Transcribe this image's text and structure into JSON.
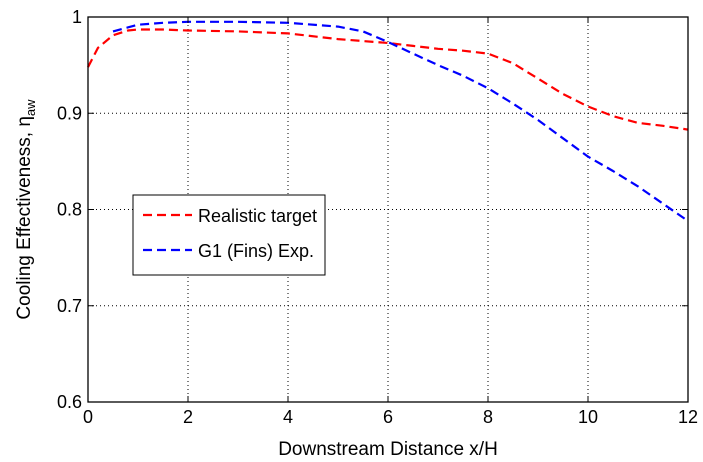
{
  "chart_data": {
    "type": "line",
    "title": "",
    "xlabel": "Downstream Distance x/H",
    "ylabel_main": "Cooling Effectiveness, η",
    "ylabel_sub": "aw",
    "xlim": [
      0,
      12
    ],
    "ylim": [
      0.6,
      1
    ],
    "xticks": [
      0,
      2,
      4,
      6,
      8,
      10,
      12
    ],
    "yticks": [
      0.6,
      0.7,
      0.8,
      0.9,
      1
    ],
    "xtick_labels": [
      "0",
      "2",
      "4",
      "6",
      "8",
      "10",
      "12"
    ],
    "ytick_labels": [
      "0.6",
      "0.7",
      "0.8",
      "0.9",
      "1"
    ],
    "grid": true,
    "legend_position": "left",
    "series": [
      {
        "name": "Realistic target",
        "color": "#ff0000",
        "style": "dashed",
        "x": [
          0,
          0.2,
          0.5,
          0.8,
          1,
          1.5,
          2,
          3,
          4,
          5,
          6,
          6.5,
          7,
          7.5,
          8,
          8.5,
          9,
          9.5,
          10,
          10.5,
          11,
          11.5,
          12
        ],
        "y": [
          0.948,
          0.968,
          0.981,
          0.986,
          0.987,
          0.987,
          0.986,
          0.985,
          0.983,
          0.977,
          0.973,
          0.97,
          0.967,
          0.965,
          0.962,
          0.952,
          0.936,
          0.92,
          0.907,
          0.897,
          0.89,
          0.887,
          0.883
        ]
      },
      {
        "name": "G1 (Fins) Exp.",
        "color": "#0000ff",
        "style": "dashed",
        "x": [
          0.5,
          1,
          1.5,
          2,
          3,
          4,
          5,
          5.5,
          6,
          6.5,
          7,
          7.5,
          8,
          8.5,
          9,
          9.5,
          10,
          10.5,
          11,
          11.5,
          12
        ],
        "y": [
          0.985,
          0.992,
          0.994,
          0.995,
          0.995,
          0.994,
          0.99,
          0.985,
          0.974,
          0.962,
          0.95,
          0.939,
          0.926,
          0.91,
          0.893,
          0.874,
          0.855,
          0.84,
          0.824,
          0.806,
          0.788
        ]
      }
    ]
  }
}
